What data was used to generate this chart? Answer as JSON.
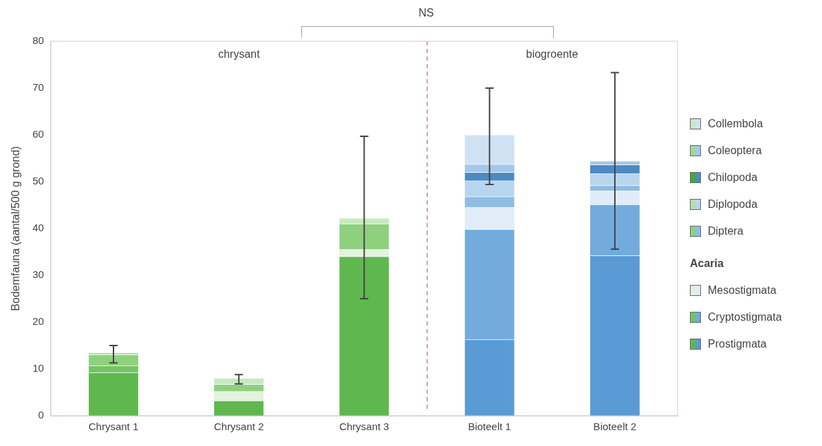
{
  "chart_data": {
    "type": "bar",
    "stacked": true,
    "ylabel": "Bodemfauna (aantal/500 g grond)",
    "categories": [
      "Chrysant 1",
      "Chrysant 2",
      "Chrysant 3",
      "Bioteelt 1",
      "Bioteelt 2"
    ],
    "series": [
      {
        "name": "Prostigmata",
        "colors": [
          "#5fb84e",
          "#5fb84e",
          "#5fb84e",
          "#5b9bd5",
          "#5b9bd5"
        ],
        "values": [
          9.2,
          3.2,
          34,
          16.3,
          34.2
        ]
      },
      {
        "name": "Cryptostigmata",
        "colors": [
          "#74c463",
          "#74c463",
          "#74c463",
          "#73abdc",
          "#73abdc"
        ],
        "values": [
          1.5,
          0,
          0,
          23.5,
          10.9
        ]
      },
      {
        "name": "Mesostigmata",
        "colors": [
          "#e3f2dc",
          "#e3f2dc",
          "#e3f2dc",
          "#e0ecf8",
          "#e0ecf8"
        ],
        "values": [
          0,
          2,
          1.5,
          4.7,
          2.9
        ]
      },
      {
        "name": "Diptera",
        "colors": [
          "#8fd07f",
          "#8fd07f",
          "#8fd07f",
          "#8fbce4",
          "#8fbce4"
        ],
        "values": [
          2.3,
          1.5,
          5.5,
          2.3,
          1.2
        ]
      },
      {
        "name": "Diplopoda",
        "colors": [
          "#b4e0a8",
          "#b4e0a8",
          "#b4e0a8",
          "#b8d5ef",
          "#b8d5ef"
        ],
        "values": [
          0.5,
          0,
          0,
          3.4,
          2.5
        ]
      },
      {
        "name": "Chilopoda",
        "colors": [
          "#4ca63c",
          "#4ca63c",
          "#4ca63c",
          "#4a8bc6",
          "#4a8bc6"
        ],
        "values": [
          0,
          0,
          0,
          1.8,
          1.9
        ]
      },
      {
        "name": "Coleoptera",
        "colors": [
          "#a3d895",
          "#a3d895",
          "#a3d895",
          "#a2c8ea",
          "#a2c8ea"
        ],
        "values": [
          0,
          0,
          0,
          1.7,
          0.8
        ]
      },
      {
        "name": "Collembola",
        "colors": [
          "#c8e9bf",
          "#c8e9bf",
          "#c8e9bf",
          "#cfe2f4",
          "#cfe2f4"
        ],
        "values": [
          0,
          1.3,
          1.2,
          6.3,
          0
        ],
        "errors": [
          [
            11.3,
            15
          ],
          [
            6.8,
            8.8
          ],
          [
            25,
            59.7
          ],
          [
            49.4,
            70
          ],
          [
            35.6,
            73.3
          ]
        ]
      }
    ],
    "ylim": [
      0,
      80
    ],
    "yticks": [
      0,
      10,
      20,
      30,
      40,
      50,
      60,
      70,
      80
    ],
    "grid": false,
    "legend": "right",
    "annotations": [
      "chrysant",
      "biogroente",
      "NS",
      "Acaria"
    ]
  }
}
